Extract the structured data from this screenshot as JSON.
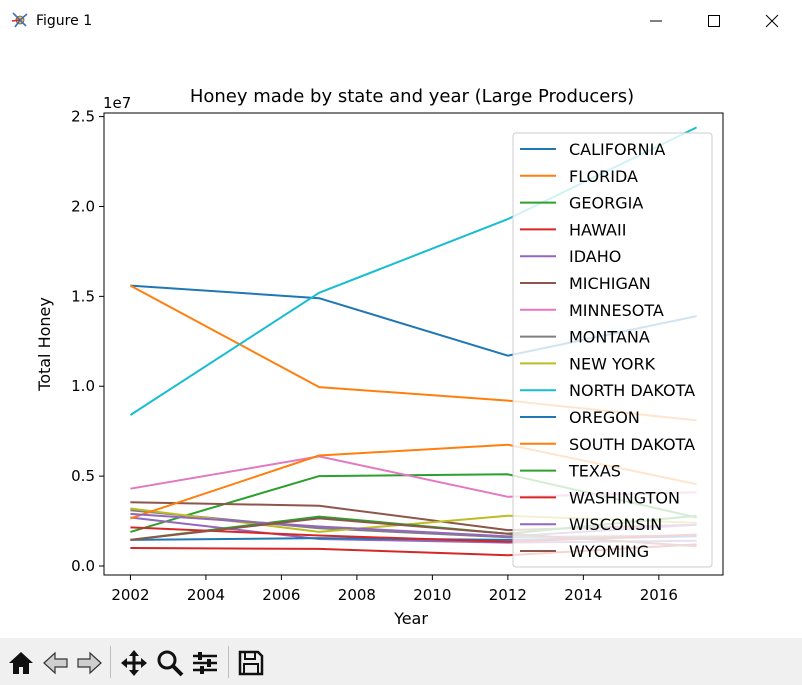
{
  "window": {
    "title": "Figure 1",
    "controls": [
      "minimize",
      "maximize",
      "close"
    ]
  },
  "toolbar": {
    "buttons": [
      "home-icon",
      "back-arrow-icon",
      "forward-arrow-icon",
      "pan-icon",
      "zoom-icon",
      "configure-subplots-icon",
      "save-icon"
    ]
  },
  "chart_data": {
    "type": "line",
    "title": "Honey made by state and year (Large Producers)",
    "xlabel": "Year",
    "ylabel": "Total Honey",
    "y_offset_label": "1e7",
    "xlim": [
      2001.3,
      2017.7
    ],
    "ylim": [
      -0.05,
      2.52
    ],
    "y_scale_note": "values in units of 1e7",
    "x_ticks": [
      2002,
      2004,
      2006,
      2008,
      2010,
      2012,
      2014,
      2016
    ],
    "y_ticks": [
      0.0,
      0.5,
      1.0,
      1.5,
      2.0,
      2.5
    ],
    "x_tick_labels": [
      "2002",
      "2004",
      "2006",
      "2008",
      "2010",
      "2012",
      "2014",
      "2016"
    ],
    "y_tick_labels": [
      "0.0",
      "0.5",
      "1.0",
      "1.5",
      "2.0",
      "2.5"
    ],
    "grid": false,
    "legend_position": "upper right",
    "x": [
      2002,
      2007,
      2012,
      2017
    ],
    "series": [
      {
        "name": "CALIFORNIA",
        "color": "#1f77b4",
        "values": [
          1.56,
          1.49,
          1.17,
          1.39
        ]
      },
      {
        "name": "FLORIDA",
        "color": "#ff7f0e",
        "values": [
          1.56,
          0.995,
          0.92,
          0.81
        ]
      },
      {
        "name": "GEORGIA",
        "color": "#2ca02c",
        "values": [
          0.19,
          0.5,
          0.51,
          0.27
        ]
      },
      {
        "name": "HAWAII",
        "color": "#d62728",
        "values": [
          0.1,
          0.095,
          0.06,
          0.12
        ]
      },
      {
        "name": "IDAHO",
        "color": "#9467bd",
        "values": [
          0.27,
          0.15,
          0.13,
          0.14
        ]
      },
      {
        "name": "MICHIGAN",
        "color": "#8c564b",
        "values": [
          0.355,
          0.335,
          0.2,
          0.23
        ]
      },
      {
        "name": "MINNESOTA",
        "color": "#e377c2",
        "values": [
          0.43,
          0.61,
          0.385,
          0.41
        ]
      },
      {
        "name": "MONTANA",
        "color": "#7f7f7f",
        "values": [
          0.31,
          0.21,
          0.16,
          0.17
        ]
      },
      {
        "name": "NEW YORK",
        "color": "#bcbd22",
        "values": [
          0.32,
          0.19,
          0.28,
          0.24
        ]
      },
      {
        "name": "NORTH DAKOTA",
        "color": "#17becf",
        "values": [
          0.84,
          1.52,
          1.93,
          2.44
        ]
      },
      {
        "name": "OREGON",
        "color": "#1f77b4",
        "values": [
          0.145,
          0.155,
          0.145,
          0.165
        ]
      },
      {
        "name": "SOUTH DAKOTA",
        "color": "#ff7f0e",
        "values": [
          0.265,
          0.615,
          0.675,
          0.455
        ]
      },
      {
        "name": "TEXAS",
        "color": "#2ca02c",
        "values": [
          0.145,
          0.275,
          0.18,
          0.28
        ]
      },
      {
        "name": "WASHINGTON",
        "color": "#d62728",
        "values": [
          0.215,
          0.17,
          0.135,
          0.175
        ]
      },
      {
        "name": "WISCONSIN",
        "color": "#9467bd",
        "values": [
          0.29,
          0.22,
          0.165,
          0.23
        ]
      },
      {
        "name": "WYOMING",
        "color": "#8c564b",
        "values": [
          0.145,
          0.265,
          0.18,
          0.11
        ]
      }
    ]
  }
}
